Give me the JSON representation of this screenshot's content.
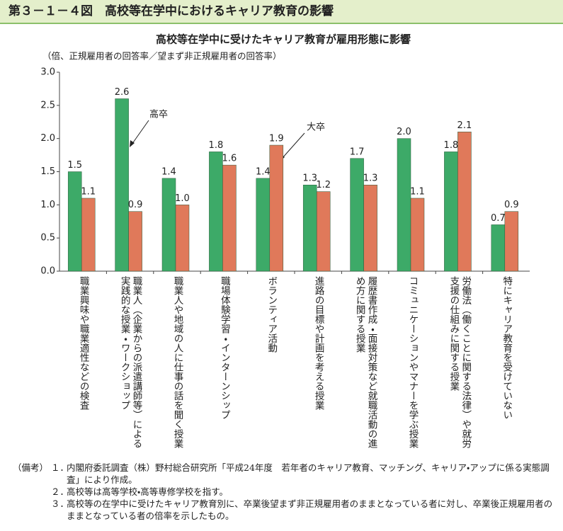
{
  "header": {
    "title": "第３－１－４図　高校等在学中におけるキャリア教育の影響"
  },
  "chart_data": {
    "type": "bar",
    "title": "高校等在学中に受けたキャリア教育が雇用形態に影響",
    "y_label": "（倍、正規雇用者の回答率／望まず非正規雇用者の回答率）",
    "categories": [
      "職業興味や職業適性などの検査",
      "職業人（企業からの派遣講師等）による実践的な授業・ワークショップ",
      "職業人や地域の人に仕事の話を聞く授業",
      "職場体験学習・インターンシップ",
      "ボランティア活動",
      "進路の目標や計画を考える授業",
      "履歴書作成・面接対策など就職活動の進め方に関する授業",
      "コミュニケーションやマナーを学ぶ授業",
      "労働法（働くことに関する法律）や就労支援の仕組みに関する授業",
      "特にキャリア教育を受けていない"
    ],
    "series": [
      {
        "name": "高卒",
        "color": "#3daa68",
        "values": [
          1.5,
          2.6,
          1.4,
          1.8,
          1.4,
          1.3,
          1.7,
          2.0,
          1.8,
          0.7
        ],
        "value_labels": [
          "1.5",
          "2.6",
          "1.4",
          "1.8",
          "1.4",
          "1.3",
          "1.7",
          "2.0",
          "1.8",
          "0.7"
        ]
      },
      {
        "name": "大卒",
        "color": "#e0795a",
        "values": [
          1.1,
          0.9,
          1.0,
          1.6,
          1.9,
          1.2,
          1.3,
          1.1,
          2.1,
          0.9
        ],
        "value_labels": [
          "1.1",
          "0.9",
          "1.0",
          "1.6",
          "1.9",
          "1.2",
          "1.3",
          "1.1",
          "2.1",
          "0.9"
        ]
      }
    ],
    "ylim": [
      0,
      3
    ],
    "yticks": [
      {
        "value": 0,
        "label": "0.0"
      },
      0.5,
      {
        "value": 1,
        "label": "1.0"
      },
      1.5,
      {
        "value": 2,
        "label": "2.0"
      },
      2.5,
      {
        "value": 3,
        "label": "3.0"
      }
    ]
  },
  "notes": {
    "label": "（備考）",
    "items": [
      {
        "num": "１．",
        "text": "内閣府委託調査（株）野村総合研究所「平成24年度　若年者のキャリア教育、マッチング、キャリア・アップに係る実態調査」により作成。"
      },
      {
        "num": "２．",
        "text": "高校等は高等学校・高等専修学校を指す。"
      },
      {
        "num": "３．",
        "text": "高校等の在学中に受けたキャリア教育別に、卒業後望まず非正規雇用者のままとなっている者に対し、卒業後正規雇用者のままとなっている者の倍率を示したもの。"
      }
    ]
  }
}
